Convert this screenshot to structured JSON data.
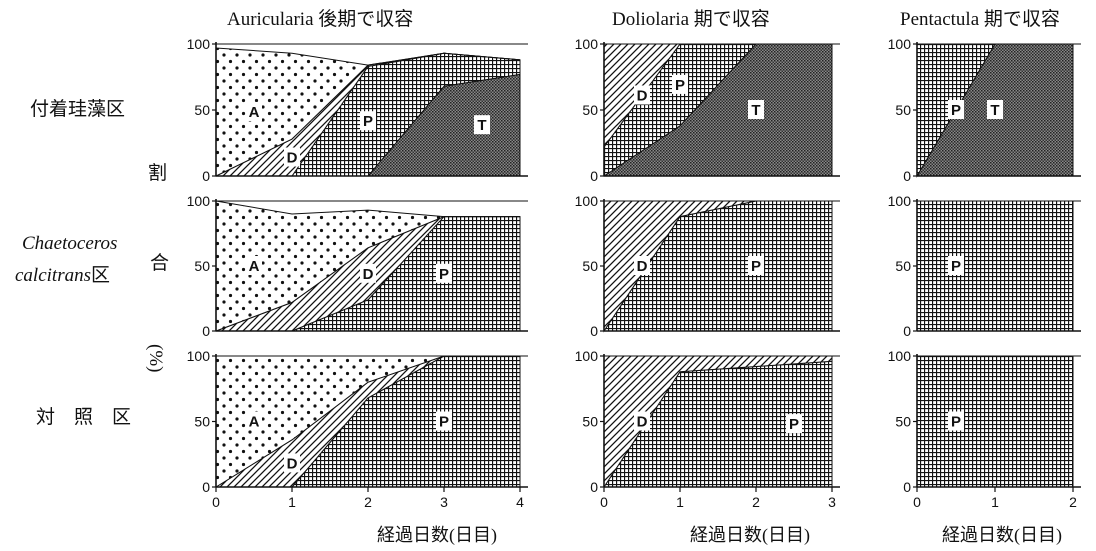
{
  "column_titles": [
    "Auricularia 後期で収容",
    "Doliolaria 期で収容",
    "Pentactula 期で収容"
  ],
  "row_labels": {
    "row1": "付着珪藻区",
    "row2_line1": "Chaetoceros",
    "row2_line2_italic": "calcitrans",
    "row2_line2_suffix": "区",
    "row3": "対　照　区"
  },
  "ylabel_chars": [
    "割",
    "合",
    "(%)"
  ],
  "xlabel": "経過日数(日目)",
  "colors": {
    "ink": "#111111",
    "background": "#ffffff"
  },
  "chart_data": [
    {
      "type": "area",
      "title": "付着珪藻区 / Auricularia 後期で収容",
      "x": [
        0,
        1,
        2,
        3,
        4
      ],
      "ylim": [
        0,
        100
      ],
      "xlim": [
        0,
        4
      ],
      "yticks": [
        0,
        50,
        100
      ],
      "xticks": [],
      "series": [
        {
          "name": "T",
          "values": [
            0,
            0,
            0,
            68,
            77
          ]
        },
        {
          "name": "P",
          "values": [
            0,
            0,
            83,
            93,
            88
          ]
        },
        {
          "name": "D",
          "values": [
            0,
            28,
            84,
            93,
            88
          ]
        },
        {
          "name": "A",
          "values": [
            97,
            93,
            84,
            93,
            88
          ]
        }
      ]
    },
    {
      "type": "area",
      "title": "付着珪藻区 / Doliolaria 期で収容",
      "x": [
        0,
        1,
        2,
        3
      ],
      "ylim": [
        0,
        100
      ],
      "xlim": [
        0,
        3
      ],
      "yticks": [
        0,
        50,
        100
      ],
      "xticks": [],
      "series": [
        {
          "name": "T",
          "values": [
            0,
            38,
            100,
            100
          ]
        },
        {
          "name": "P",
          "values": [
            22,
            100,
            100,
            100
          ]
        },
        {
          "name": "D",
          "values": [
            100,
            100,
            100,
            100
          ]
        }
      ]
    },
    {
      "type": "area",
      "title": "付着珪藻区 / Pentactula 期で収容",
      "x": [
        0,
        1,
        2
      ],
      "ylim": [
        0,
        100
      ],
      "xlim": [
        0,
        2
      ],
      "yticks": [
        0,
        50,
        100
      ],
      "xticks": [],
      "series": [
        {
          "name": "T",
          "values": [
            0,
            100,
            100
          ]
        },
        {
          "name": "P",
          "values": [
            100,
            100,
            100
          ]
        }
      ]
    },
    {
      "type": "area",
      "title": "Chaetoceros calcitrans区 / Auricularia 後期で収容",
      "x": [
        0,
        1,
        2,
        3,
        4
      ],
      "ylim": [
        0,
        100
      ],
      "xlim": [
        0,
        4
      ],
      "yticks": [
        0,
        50,
        100
      ],
      "xticks": [],
      "series": [
        {
          "name": "P",
          "values": [
            0,
            0,
            24,
            88,
            88
          ]
        },
        {
          "name": "D",
          "values": [
            0,
            22,
            64,
            88,
            88
          ]
        },
        {
          "name": "A",
          "values": [
            100,
            90,
            93,
            88,
            88
          ]
        }
      ]
    },
    {
      "type": "area",
      "title": "Chaetoceros calcitrans区 / Doliolaria 期で収容",
      "x": [
        0,
        1,
        2,
        3
      ],
      "ylim": [
        0,
        100
      ],
      "xlim": [
        0,
        3
      ],
      "yticks": [
        0,
        50,
        100
      ],
      "xticks": [],
      "series": [
        {
          "name": "P",
          "values": [
            0,
            88,
            100,
            100
          ]
        },
        {
          "name": "D",
          "values": [
            100,
            100,
            100,
            100
          ]
        }
      ]
    },
    {
      "type": "area",
      "title": "Chaetoceros calcitrans区 / Pentactula 期で収容",
      "x": [
        0,
        1,
        2
      ],
      "ylim": [
        0,
        100
      ],
      "xlim": [
        0,
        2
      ],
      "yticks": [
        0,
        50,
        100
      ],
      "xticks": [],
      "series": [
        {
          "name": "P",
          "values": [
            100,
            100,
            100
          ]
        }
      ]
    },
    {
      "type": "area",
      "title": "対照区 / Auricularia 後期で収容",
      "x": [
        0,
        1,
        2,
        3,
        4
      ],
      "ylim": [
        0,
        100
      ],
      "xlim": [
        0,
        4
      ],
      "yticks": [
        0,
        50,
        100
      ],
      "xticks": [
        "0",
        "1",
        "2",
        "3",
        "4"
      ],
      "series": [
        {
          "name": "P",
          "values": [
            0,
            0,
            68,
            100,
            100
          ]
        },
        {
          "name": "D",
          "values": [
            0,
            36,
            80,
            100,
            100
          ]
        },
        {
          "name": "A",
          "values": [
            100,
            100,
            100,
            100,
            100
          ]
        }
      ]
    },
    {
      "type": "area",
      "title": "対照区 / Doliolaria 期で収容",
      "x": [
        0,
        1,
        2,
        3
      ],
      "ylim": [
        0,
        100
      ],
      "xlim": [
        0,
        3
      ],
      "yticks": [
        0,
        50,
        100
      ],
      "xticks": [
        "0",
        "1",
        "2",
        "3"
      ],
      "series": [
        {
          "name": "P",
          "values": [
            0,
            88,
            92,
            96
          ]
        },
        {
          "name": "D",
          "values": [
            100,
            100,
            100,
            100
          ]
        }
      ]
    },
    {
      "type": "area",
      "title": "対照区 / Pentactula 期で収容",
      "x": [
        0,
        1,
        2
      ],
      "ylim": [
        0,
        100
      ],
      "xlim": [
        0,
        2
      ],
      "yticks": [
        0,
        50,
        100
      ],
      "xticks": [
        "0",
        "1",
        "2"
      ],
      "series": [
        {
          "name": "P",
          "values": [
            100,
            100,
            100
          ]
        }
      ]
    }
  ]
}
